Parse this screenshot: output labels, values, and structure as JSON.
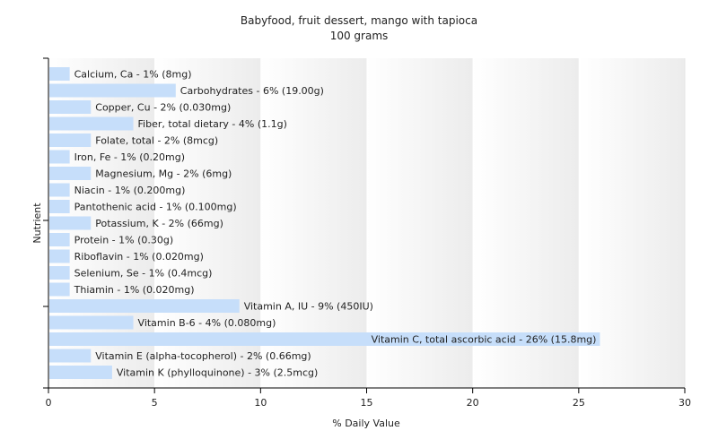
{
  "chart_data": {
    "type": "bar",
    "orientation": "horizontal",
    "title": "Babyfood, fruit dessert, mango with tapioca",
    "subtitle": "100 grams",
    "xlabel": "% Daily Value",
    "ylabel": "Nutrient",
    "xlim": [
      0,
      30
    ],
    "x_ticks": [
      "0",
      "5",
      "10",
      "15",
      "20",
      "25",
      "30"
    ],
    "grid": "vertical gradient bands",
    "legend": "none",
    "colors": {
      "bar": "#c6defa",
      "axis": "#000000",
      "text": "#222222"
    },
    "categories": [
      "Calcium, Ca",
      "Carbohydrates",
      "Copper, Cu",
      "Fiber, total dietary",
      "Folate, total",
      "Iron, Fe",
      "Magnesium, Mg",
      "Niacin",
      "Pantothenic acid",
      "Potassium, K",
      "Protein",
      "Riboflavin",
      "Selenium, Se",
      "Thiamin",
      "Vitamin A, IU",
      "Vitamin B-6",
      "Vitamin C, total ascorbic acid",
      "Vitamin E (alpha-tocopherol)",
      "Vitamin K (phylloquinone)"
    ],
    "values": [
      1,
      6,
      2,
      4,
      2,
      1,
      2,
      1,
      1,
      2,
      1,
      1,
      1,
      1,
      9,
      4,
      26,
      2,
      3
    ],
    "labels": [
      "Calcium, Ca - 1% (8mg)",
      "Carbohydrates - 6% (19.00g)",
      "Copper, Cu - 2% (0.030mg)",
      "Fiber, total dietary - 4% (1.1g)",
      "Folate, total - 2% (8mcg)",
      "Iron, Fe - 1% (0.20mg)",
      "Magnesium, Mg - 2% (6mg)",
      "Niacin - 1% (0.200mg)",
      "Pantothenic acid - 1% (0.100mg)",
      "Potassium, K - 2% (66mg)",
      "Protein - 1% (0.30g)",
      "Riboflavin - 1% (0.020mg)",
      "Selenium, Se - 1% (0.4mcg)",
      "Thiamin - 1% (0.020mg)",
      "Vitamin A, IU - 9% (450IU)",
      "Vitamin B-6 - 4% (0.080mg)",
      "Vitamin C, total ascorbic acid - 26% (15.8mg)",
      "Vitamin E (alpha-tocopherol) - 2% (0.66mg)",
      "Vitamin K (phylloquinone) - 3% (2.5mcg)"
    ]
  }
}
